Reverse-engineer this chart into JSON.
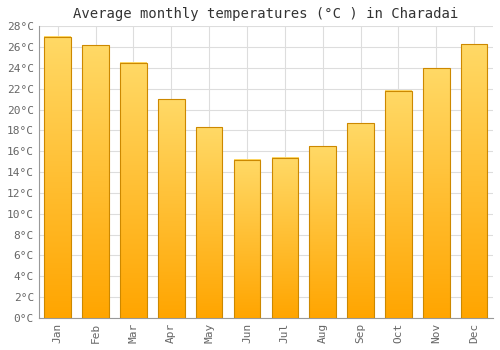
{
  "title": "Average monthly temperatures (°C ) in Charadai",
  "months": [
    "Jan",
    "Feb",
    "Mar",
    "Apr",
    "May",
    "Jun",
    "Jul",
    "Aug",
    "Sep",
    "Oct",
    "Nov",
    "Dec"
  ],
  "values": [
    27,
    26.2,
    24.5,
    21,
    18.3,
    15.2,
    15.4,
    16.5,
    18.7,
    21.8,
    24,
    26.3
  ],
  "bar_color_top": "#FFD966",
  "bar_color_bottom": "#FFA500",
  "bar_edge_color": "#CC8800",
  "ylim": [
    0,
    28
  ],
  "yticks": [
    0,
    2,
    4,
    6,
    8,
    10,
    12,
    14,
    16,
    18,
    20,
    22,
    24,
    26,
    28
  ],
  "ytick_labels": [
    "0°C",
    "2°C",
    "4°C",
    "6°C",
    "8°C",
    "10°C",
    "12°C",
    "14°C",
    "16°C",
    "18°C",
    "20°C",
    "22°C",
    "24°C",
    "26°C",
    "28°C"
  ],
  "background_color": "#FFFFFF",
  "plot_bg_color": "#FFFFFF",
  "grid_color": "#DDDDDD",
  "title_fontsize": 10,
  "tick_fontsize": 8,
  "bar_width": 0.7
}
